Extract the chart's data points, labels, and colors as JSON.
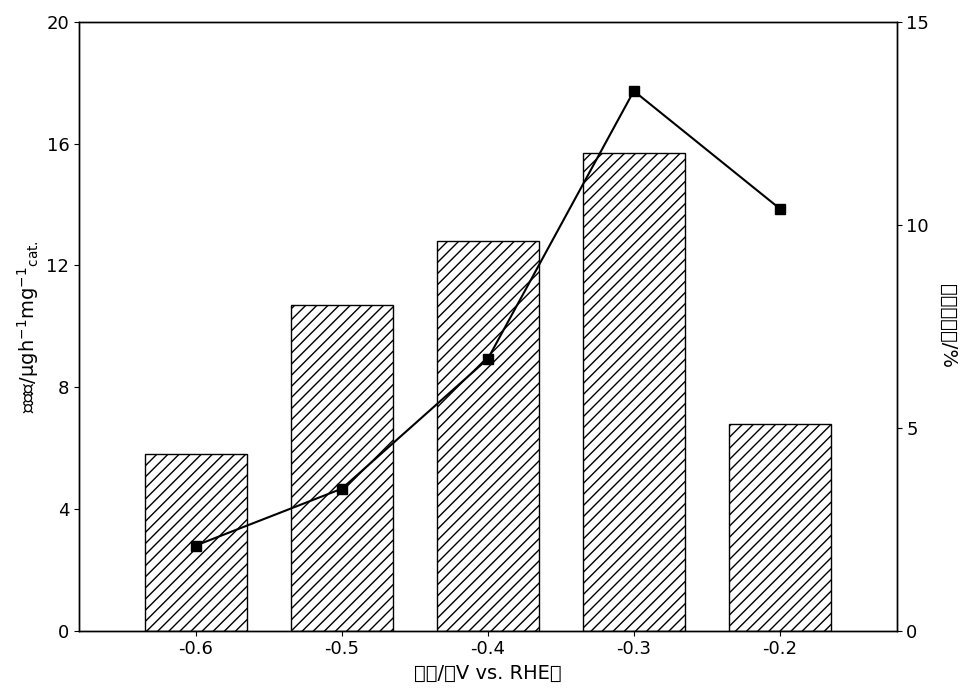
{
  "x_labels": [
    "-0.6",
    "-0.5",
    "-0.4",
    "-0.3",
    "-0.2"
  ],
  "x_values": [
    -0.6,
    -0.5,
    -0.4,
    -0.3,
    -0.2
  ],
  "bar_heights": [
    5.8,
    10.7,
    12.8,
    15.7,
    6.8
  ],
  "line_y_right": [
    2.1,
    3.5,
    6.7,
    13.3,
    10.4
  ],
  "bar_color": "white",
  "bar_edge_color": "black",
  "bar_hatch": "///",
  "line_color": "black",
  "marker_style": "s",
  "marker_color": "black",
  "marker_size": 7,
  "ylabel_right": "%",
  "ylim_left": [
    0,
    20
  ],
  "ylim_right": [
    0,
    15
  ],
  "yticks_left": [
    0,
    4,
    8,
    12,
    16,
    20
  ],
  "yticks_right": [
    0,
    5,
    10,
    15
  ],
  "bar_width": 0.07,
  "figsize": [
    9.72,
    6.98
  ],
  "dpi": 100,
  "background_color": "white",
  "spine_color": "black",
  "fontsize_labels": 14,
  "fontsize_ticks": 13
}
